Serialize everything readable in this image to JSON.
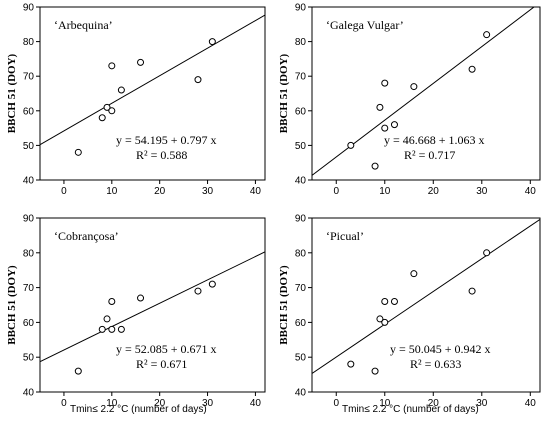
{
  "chart_data": [
    {
      "type": "scatter",
      "title": "‘Arbequina’",
      "ylabel": "BBCH 51 (DOY)",
      "xlim": [
        -5,
        42
      ],
      "ylim": [
        40,
        90
      ],
      "xticks": [
        0,
        10,
        20,
        30,
        40
      ],
      "yticks": [
        40,
        50,
        60,
        70,
        80,
        90
      ],
      "points": [
        [
          3,
          48
        ],
        [
          8,
          58
        ],
        [
          9,
          61
        ],
        [
          10,
          73
        ],
        [
          10,
          60
        ],
        [
          12,
          66
        ],
        [
          16,
          74
        ],
        [
          28,
          69
        ],
        [
          31,
          80
        ]
      ],
      "fit": {
        "intercept": 54.195,
        "slope": 0.797
      },
      "equation": "y = 54.195 + 0.797 x",
      "r2": "R² = 0.588"
    },
    {
      "type": "scatter",
      "title": "‘Galega Vulgar’",
      "ylabel": "BBCH 51 (DOY)",
      "xlim": [
        -5,
        42
      ],
      "ylim": [
        40,
        90
      ],
      "xticks": [
        0,
        10,
        20,
        30,
        40
      ],
      "yticks": [
        40,
        50,
        60,
        70,
        80,
        90
      ],
      "points": [
        [
          3,
          50
        ],
        [
          8,
          44
        ],
        [
          9,
          61
        ],
        [
          10,
          68
        ],
        [
          10,
          55
        ],
        [
          12,
          56
        ],
        [
          16,
          67
        ],
        [
          28,
          72
        ],
        [
          31,
          82
        ]
      ],
      "fit": {
        "intercept": 46.668,
        "slope": 1.063
      },
      "equation": "y = 46.668 + 1.063 x",
      "r2": "R² = 0.717"
    },
    {
      "type": "scatter",
      "title": "‘Cobrançosa’",
      "ylabel": "BBCH 51 (DOY)",
      "xlim": [
        -5,
        42
      ],
      "ylim": [
        40,
        90
      ],
      "xticks": [
        0,
        10,
        20,
        30,
        40
      ],
      "yticks": [
        40,
        50,
        60,
        70,
        80,
        90
      ],
      "points": [
        [
          3,
          46
        ],
        [
          8,
          58
        ],
        [
          9,
          61
        ],
        [
          10,
          66
        ],
        [
          10,
          58
        ],
        [
          12,
          58
        ],
        [
          16,
          67
        ],
        [
          28,
          69
        ],
        [
          31,
          71
        ]
      ],
      "fit": {
        "intercept": 52.085,
        "slope": 0.671
      },
      "equation": "y = 52.085 + 0.671 x",
      "r2": "R² = 0.671"
    },
    {
      "type": "scatter",
      "title": "‘Picual’",
      "ylabel": "BBCH 51 (DOY)",
      "xlim": [
        -5,
        42
      ],
      "ylim": [
        40,
        90
      ],
      "xticks": [
        0,
        10,
        20,
        30,
        40
      ],
      "yticks": [
        40,
        50,
        60,
        70,
        80,
        90
      ],
      "points": [
        [
          3,
          48
        ],
        [
          8,
          46
        ],
        [
          9,
          61
        ],
        [
          10,
          66
        ],
        [
          10,
          60
        ],
        [
          12,
          66
        ],
        [
          16,
          74
        ],
        [
          28,
          69
        ],
        [
          31,
          80
        ]
      ],
      "fit": {
        "intercept": 50.045,
        "slope": 0.942
      },
      "equation": "y = 50.045 + 0.942 x",
      "r2": "R² = 0.633"
    }
  ],
  "xlabel": "Tmin≤ 2.2 °C (number of days)"
}
